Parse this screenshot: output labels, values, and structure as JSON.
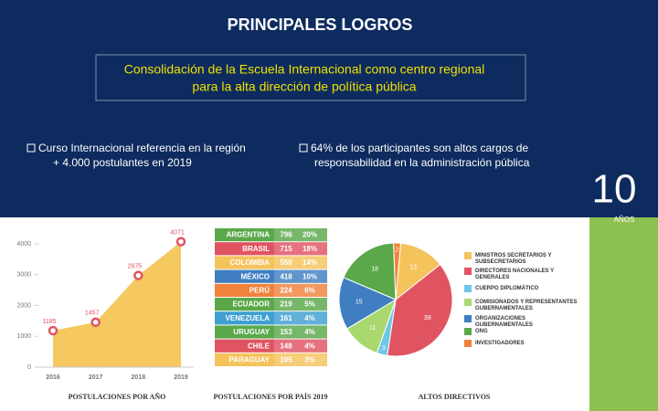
{
  "header": {
    "title": "PRINCIPALES LOGROS",
    "subtitle_lines": [
      "Consolidación de la Escuela Internacional como centro regional",
      "para la alta dirección de política pública"
    ]
  },
  "bullets": [
    {
      "lines": [
        "Curso Internacional referencia en la región",
        "+ 4.000 postulantes en 2019"
      ]
    },
    {
      "lines": [
        "64% de los participantes son altos cargos de",
        "responsabilidad en la administración pública"
      ]
    }
  ],
  "logo": {
    "number": "10",
    "text": "AÑOS"
  },
  "table": {
    "caption": "POSTULACIONES POR PAÍS 2019",
    "colors": [
      "#5aa84a",
      "#e05462",
      "#f5c35c",
      "#3f7fc1",
      "#f0823c",
      "#5aa84a",
      "#3f9fd1",
      "#5aa84a",
      "#e05462",
      "#f5c35c"
    ],
    "rows": [
      [
        "ARGENTINA",
        "796",
        "20%"
      ],
      [
        "BRASIL",
        "715",
        "18%"
      ],
      [
        "COLOMBIA",
        "550",
        "14%"
      ],
      [
        "MÉXICO",
        "418",
        "10%"
      ],
      [
        "PERÚ",
        "224",
        "6%"
      ],
      [
        "ECUADOR",
        "219",
        "5%"
      ],
      [
        "VENEZUELA",
        "161",
        "4%"
      ],
      [
        "URUGUAY",
        "153",
        "4%"
      ],
      [
        "CHILE",
        "148",
        "4%"
      ],
      [
        "PARAGUAY",
        "105",
        "3%"
      ]
    ]
  },
  "chart_data": [
    {
      "type": "area",
      "title": "POSTULACIONES POR AÑO",
      "categories": [
        "2016",
        "2017",
        "2018",
        "2019"
      ],
      "values": [
        1185,
        1457,
        2975,
        4071
      ],
      "color": "#f5c860",
      "marker_color": "#e05462",
      "ylim": [
        0,
        4400
      ],
      "yticks": [
        0,
        1000,
        2000,
        3000,
        4000
      ]
    },
    {
      "type": "pie",
      "title": "ALTOS DIRECTIVOS",
      "categories": [
        "MINISTROS SECRETARIOS Y SUBSECRETARIOS",
        "DIRECTORES NACIONALES Y GENERALES",
        "CUERPO DIPLOMÁTICO",
        "COMISIONADOS Y REPRESENTANTES GUBERNAMENTALES",
        "ORGANIZACIONES GUBERNAMENTALES",
        "ONG",
        "INVESTIGADORES"
      ],
      "values": [
        13,
        38,
        3,
        11,
        15,
        18,
        2
      ],
      "colors": [
        "#f5c35c",
        "#e05462",
        "#6ec6e8",
        "#a8d86e",
        "#3f7fc1",
        "#5aa84a",
        "#f0823c"
      ]
    }
  ]
}
